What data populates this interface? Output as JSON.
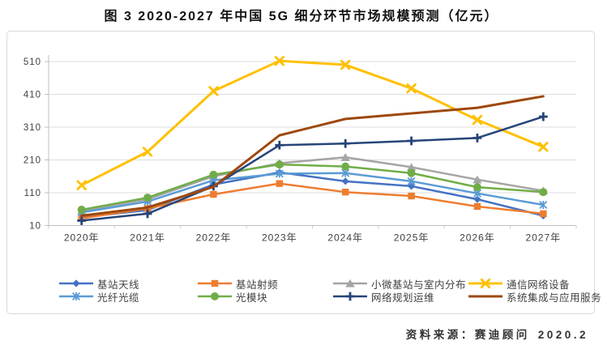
{
  "title": "图 3 2020-2027 年中国 5G 细分环节市场规模预测（亿元）",
  "source": {
    "label": "资料来源：",
    "name": "赛迪顾问",
    "date": "2020.2"
  },
  "chart_data": {
    "type": "line",
    "categories": [
      "2020年",
      "2021年",
      "2022年",
      "2023年",
      "2024年",
      "2025年",
      "2026年",
      "2027年"
    ],
    "series": [
      {
        "name": "基站天线",
        "color": "#4472C4",
        "marker": "diamond",
        "stroke_width": 2.5,
        "values": [
          35,
          57,
          135,
          172,
          145,
          130,
          90,
          40
        ]
      },
      {
        "name": "基站射频",
        "color": "#ED7D31",
        "marker": "square",
        "stroke_width": 2.5,
        "values": [
          32,
          62,
          105,
          138,
          112,
          100,
          68,
          46
        ]
      },
      {
        "name": "小微基站与室内分布",
        "color": "#A5A5A5",
        "marker": "triangle",
        "stroke_width": 2.5,
        "values": [
          55,
          90,
          160,
          200,
          218,
          188,
          150,
          116
        ]
      },
      {
        "name": "通信网络设备",
        "color": "#FFC000",
        "marker": "x",
        "stroke_width": 3,
        "values": [
          133,
          235,
          420,
          512,
          500,
          428,
          332,
          250
        ]
      },
      {
        "name": "光纤光缆",
        "color": "#5B9BD5",
        "marker": "asterisk",
        "stroke_width": 2.5,
        "values": [
          50,
          83,
          148,
          168,
          170,
          145,
          108,
          73
        ]
      },
      {
        "name": "光模块",
        "color": "#70AD47",
        "marker": "circle",
        "stroke_width": 2.5,
        "values": [
          58,
          95,
          165,
          196,
          190,
          170,
          127,
          112
        ]
      },
      {
        "name": "网络规划运维",
        "color": "#264478",
        "marker": "plus",
        "stroke_width": 2.5,
        "values": [
          25,
          46,
          130,
          255,
          260,
          268,
          277,
          342
        ]
      },
      {
        "name": "系统集成与应用服务",
        "color": "#9E480E",
        "marker": "none",
        "stroke_width": 3,
        "values": [
          40,
          65,
          128,
          285,
          335,
          352,
          369,
          404
        ]
      }
    ],
    "title": "图 3 2020-2027 年中国 5G 细分环节市场规模预测（亿元）",
    "xlabel": "",
    "ylabel": "",
    "ylim": [
      10,
      510
    ],
    "yticks": [
      10,
      110,
      210,
      310,
      410,
      510
    ],
    "grid": true,
    "legend_position": "bottom"
  }
}
